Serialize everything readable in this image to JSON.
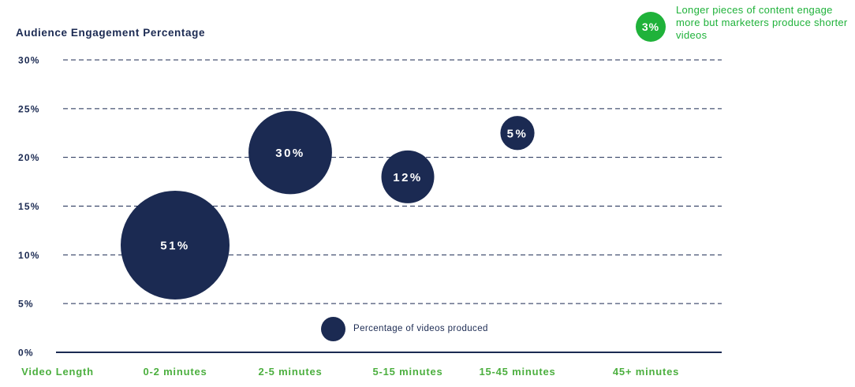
{
  "chart_data": {
    "type": "scatter",
    "title": "",
    "xlabel": "Video Length",
    "ylabel": "Audience Engagement Percentage",
    "categories": [
      "0-2 minutes",
      "2-5 minutes",
      "5-15 minutes",
      "15-45 minutes",
      "45+ minutes"
    ],
    "ylim": [
      0,
      30
    ],
    "y_ticks": [
      "0%",
      "5%",
      "10%",
      "15%",
      "20%",
      "25%",
      "30%"
    ],
    "grid": true,
    "series": [
      {
        "name": "Percentage of videos produced",
        "color": "#1b2a52",
        "points": [
          {
            "category": "0-2 minutes",
            "y": 11,
            "size": 51,
            "label": "51%"
          },
          {
            "category": "2-5 minutes",
            "y": 20.5,
            "size": 30,
            "label": "30%"
          },
          {
            "category": "5-15 minutes",
            "y": 18,
            "size": 12,
            "label": "12%"
          },
          {
            "category": "15-45 minutes",
            "y": 22.5,
            "size": 5,
            "label": "5%"
          },
          {
            "category": "45+ minutes",
            "y": null,
            "size": 3,
            "label": "3%",
            "shown_as_callout": true
          }
        ]
      }
    ],
    "legend_placement": "bottom-center",
    "annotation": {
      "value": "3%",
      "text": "Longer pieces of content engage more but marketers produce shorter videos"
    }
  },
  "colors": {
    "bubble": "#1b2a52",
    "axis_text": "#1b2a52",
    "x_label_text": "#4caf3f",
    "callout": "#1fb23a",
    "gridline": "#1b2a52"
  }
}
